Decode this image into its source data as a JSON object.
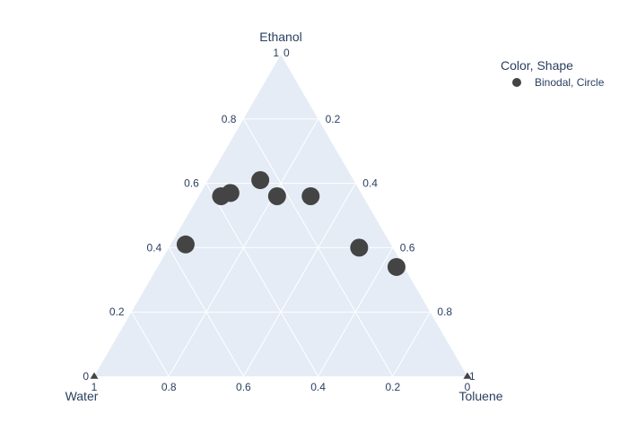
{
  "chart_data": {
    "type": "scatter",
    "subtype": "ternary",
    "axes": {
      "top": {
        "title": "Ethanol",
        "ticks": [
          "0.2",
          "0.4",
          "0.6",
          "0.8",
          "1"
        ]
      },
      "left": {
        "title": "Water",
        "ticks": [
          "0.2",
          "0.4",
          "0.6",
          "0.8",
          "1"
        ]
      },
      "right": {
        "title": "Toluene",
        "ticks": [
          "0.2",
          "0.4",
          "0.6",
          "0.8",
          "1"
        ]
      }
    },
    "corner_labels": {
      "top": "0",
      "left": "0",
      "right": "0"
    },
    "grid": true,
    "legend": {
      "title": "Color, Shape",
      "placement": "top-right",
      "entries": [
        {
          "name": "Binodal, Circle",
          "color": "#444444",
          "symbol": "circle"
        }
      ]
    },
    "series": [
      {
        "name": "Binodal, Circle",
        "color": "#444444",
        "points": [
          {
            "Ethanol": 0.41,
            "Water": 0.55,
            "Toluene": 0.04
          },
          {
            "Ethanol": 0.56,
            "Water": 0.38,
            "Toluene": 0.06
          },
          {
            "Ethanol": 0.57,
            "Water": 0.35,
            "Toluene": 0.08
          },
          {
            "Ethanol": 0.61,
            "Water": 0.25,
            "Toluene": 0.14
          },
          {
            "Ethanol": 0.56,
            "Water": 0.23,
            "Toluene": 0.21
          },
          {
            "Ethanol": 0.56,
            "Water": 0.14,
            "Toluene": 0.3
          },
          {
            "Ethanol": 0.4,
            "Water": 0.09,
            "Toluene": 0.51
          },
          {
            "Ethanol": 0.34,
            "Water": 0.02,
            "Toluene": 0.64
          }
        ]
      },
      {
        "name": "",
        "color": "#444444",
        "symbol": "triangle-up",
        "points": [
          {
            "Ethanol": 0,
            "Water": 1,
            "Toluene": 0
          },
          {
            "Ethanol": 0,
            "Water": 0,
            "Toluene": 1
          }
        ]
      }
    ]
  }
}
